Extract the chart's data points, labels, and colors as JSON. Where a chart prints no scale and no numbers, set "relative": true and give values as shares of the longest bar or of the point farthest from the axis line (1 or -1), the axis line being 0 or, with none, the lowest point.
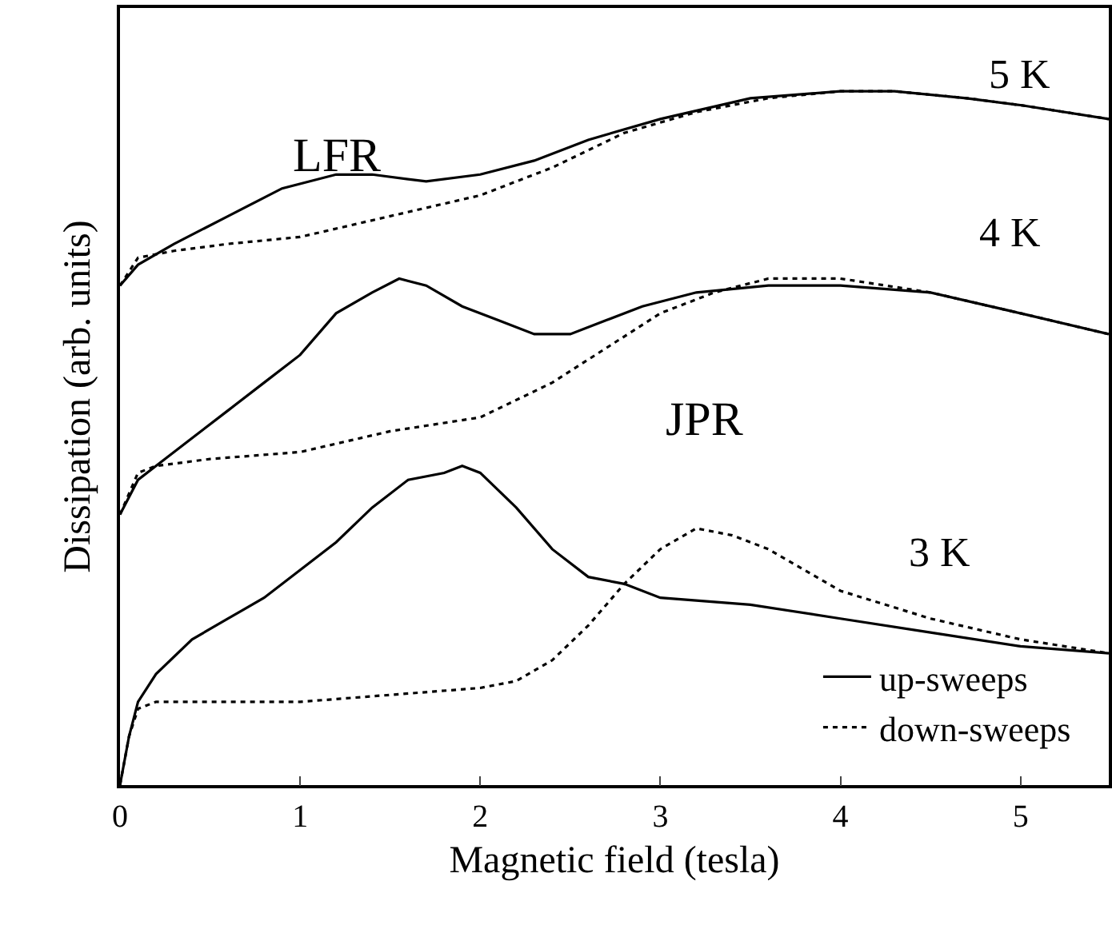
{
  "chart_data": {
    "type": "line",
    "relative": true,
    "xlabel": "Magnetic field (tesla)",
    "ylabel": "Dissipation (arb. units)",
    "xlim": [
      0,
      5.49
    ],
    "xticks": [
      0,
      1,
      2,
      3,
      4,
      5
    ],
    "legend": "bottom right",
    "marker": "none",
    "series": [
      {
        "name": "up-sweeps",
        "color": "#000000",
        "line_style": "solid",
        "x": [
          0,
          0.05,
          0.1,
          0.2,
          0.4,
          0.6,
          0.8,
          1.0,
          1.2,
          1.4,
          1.6,
          1.8,
          1.9,
          2.0,
          2.2,
          2.4,
          2.6,
          2.8,
          3.0,
          3.5,
          4.0,
          4.5,
          5.0,
          5.49
        ],
        "values": [
          0,
          0.07,
          0.12,
          0.16,
          0.21,
          0.24,
          0.27,
          0.31,
          0.35,
          0.4,
          0.44,
          0.45,
          0.46,
          0.45,
          0.4,
          0.34,
          0.3,
          0.29,
          0.27,
          0.26,
          0.24,
          0.22,
          0.2,
          0.19
        ]
      },
      {
        "name": "down-sweeps",
        "color": "#000000",
        "line_style": "dotted",
        "x": [
          0,
          0.05,
          0.1,
          0.2,
          0.5,
          1.0,
          1.5,
          2.0,
          2.2,
          2.4,
          2.6,
          2.8,
          3.0,
          3.2,
          3.4,
          3.6,
          3.8,
          4.0,
          4.5,
          5.0,
          5.49
        ],
        "values": [
          0,
          0.07,
          0.11,
          0.12,
          0.12,
          0.12,
          0.13,
          0.14,
          0.15,
          0.18,
          0.23,
          0.29,
          0.34,
          0.37,
          0.36,
          0.34,
          0.31,
          0.28,
          0.24,
          0.21,
          0.19
        ]
      },
      {
        "color": "#000000",
        "line_style": "solid",
        "x": [
          0,
          0.1,
          0.2,
          0.4,
          0.6,
          0.8,
          1.0,
          1.2,
          1.4,
          1.55,
          1.7,
          1.9,
          2.1,
          2.3,
          2.5,
          2.7,
          2.9,
          3.2,
          3.6,
          4.0,
          4.5,
          5.0,
          5.49
        ],
        "values": [
          0.39,
          0.44,
          0.46,
          0.5,
          0.54,
          0.58,
          0.62,
          0.68,
          0.71,
          0.73,
          0.72,
          0.69,
          0.67,
          0.65,
          0.65,
          0.67,
          0.69,
          0.71,
          0.72,
          0.72,
          0.71,
          0.68,
          0.65
        ]
      },
      {
        "color": "#000000",
        "line_style": "dotted",
        "x": [
          0,
          0.1,
          0.2,
          0.5,
          1.0,
          1.5,
          2.0,
          2.4,
          2.7,
          3.0,
          3.3,
          3.6,
          3.75,
          4.0,
          4.5,
          5.0,
          5.49
        ],
        "values": [
          0.39,
          0.45,
          0.46,
          0.47,
          0.48,
          0.51,
          0.53,
          0.58,
          0.63,
          0.68,
          0.71,
          0.73,
          0.73,
          0.73,
          0.71,
          0.68,
          0.65
        ]
      },
      {
        "color": "#000000",
        "line_style": "solid",
        "x": [
          0,
          0.1,
          0.3,
          0.6,
          0.9,
          1.2,
          1.4,
          1.7,
          2.0,
          2.3,
          2.6,
          3.0,
          3.5,
          4.0,
          4.3,
          4.7,
          5.0,
          5.49
        ],
        "values": [
          0.72,
          0.75,
          0.78,
          0.82,
          0.86,
          0.88,
          0.88,
          0.87,
          0.88,
          0.9,
          0.93,
          0.96,
          0.99,
          1.0,
          1.0,
          0.99,
          0.98,
          0.96
        ]
      },
      {
        "color": "#000000",
        "line_style": "dotted",
        "x": [
          0,
          0.1,
          0.3,
          0.6,
          1.0,
          1.5,
          2.0,
          2.4,
          2.8,
          3.2,
          3.6,
          4.0,
          4.3,
          4.7,
          5.0,
          5.49
        ],
        "values": [
          0.72,
          0.76,
          0.77,
          0.78,
          0.79,
          0.82,
          0.85,
          0.89,
          0.94,
          0.97,
          0.99,
          1.0,
          1.0,
          0.99,
          0.98,
          0.96
        ]
      }
    ],
    "annotations": [
      "LFR",
      "JPR",
      "5 K",
      "4 K",
      "3 K"
    ]
  }
}
